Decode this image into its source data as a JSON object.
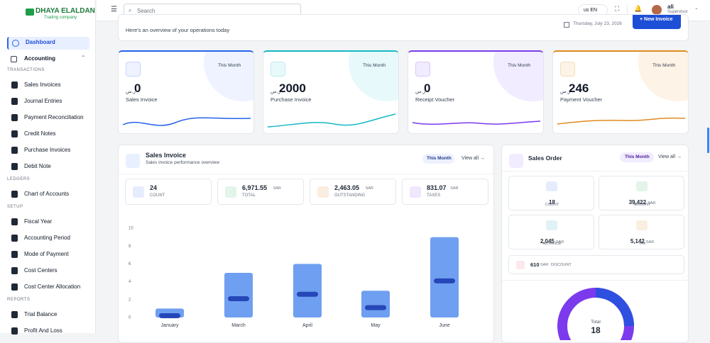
{
  "sidebar": {
    "brand": "DHAYA ELALDAN",
    "brand_sub": "Trading company",
    "dashboard": "Dashboard",
    "accounting": "Accounting",
    "sections": [
      {
        "title": "TRANSACTIONS",
        "items": [
          "Sales Invoices",
          "Journal Entries",
          "Payment Reconciliation",
          "Credit Notes",
          "Purchase Invoices",
          "Debit Note"
        ]
      },
      {
        "title": "LEDGERS",
        "items": [
          "Chart of Accounts"
        ]
      },
      {
        "title": "SETUP",
        "items": [
          "Fiscal Year",
          "Accounting Period",
          "Mode of Payment",
          "Cost Centers",
          "Cost Center Allocation"
        ]
      },
      {
        "title": "REPORTS",
        "items": [
          "Trial Balance",
          "Profit And Loss"
        ]
      }
    ]
  },
  "topbar": {
    "search": "Search",
    "language": "us EN",
    "user": "ali",
    "role": "Supervisor"
  },
  "header": {
    "subtitle": "Here's an overview of your operations today",
    "date": "Thursday, July 23, 2026",
    "button": "+ New Invoice"
  },
  "stats": [
    {
      "period": "This Month",
      "currency": "ر.س",
      "value": 0,
      "label": "Sales Invoice"
    },
    {
      "period": "This Month",
      "currency": "ر.س",
      "value": 2000,
      "label": "Purchase Invoice"
    },
    {
      "period": "This Month",
      "currency": "ر.س",
      "value": 0,
      "label": "Receipt Voucher"
    },
    {
      "period": "This Month",
      "currency": "ر.س",
      "value": 246,
      "label": "Payment Voucher"
    }
  ],
  "sales_invoice": {
    "title": "Sales Invoice",
    "subtitle": "Sales invoice performance overview",
    "period": "This Month",
    "link": "View all →",
    "metrics": [
      {
        "value": "24",
        "label": "COUNT"
      },
      {
        "value": "6,971.55",
        "unit": "SAR",
        "label": "TOTAL"
      },
      {
        "value": "2,463.05",
        "unit": "SAR",
        "label": "OUTSTANDING"
      },
      {
        "value": "831.07",
        "unit": "SAR",
        "label": "TAXES"
      }
    ],
    "chart_data": {
      "type": "bar",
      "categories": [
        "January",
        "March",
        "April",
        "May",
        "June"
      ],
      "series": [
        {
          "color": "#6f9ff0",
          "values": [
            1,
            5,
            6,
            3,
            9
          ]
        },
        {
          "color": "#2547b8",
          "values": [
            0.2,
            2.1,
            2.6,
            1.1,
            4.1
          ]
        }
      ],
      "ylim": [
        0,
        10
      ],
      "yticks": [
        0,
        2,
        4,
        6,
        8,
        10
      ]
    }
  },
  "sales_order": {
    "title": "Sales Order",
    "period": "This Month",
    "link": "View all →",
    "metrics": [
      {
        "value": "18",
        "label": "COUNT"
      },
      {
        "value": "39,422",
        "unit": "SAR",
        "label": "AMOUNT"
      },
      {
        "value": "2,045",
        "unit": "SAR",
        "label": "ADVANCE"
      },
      {
        "value": "5,142",
        "unit": "SAR",
        "label": "TAX"
      }
    ],
    "discount": {
      "value": "610",
      "unit": "SAR",
      "label": "DISCOUNT"
    },
    "total_label": "Total",
    "total": "18"
  }
}
